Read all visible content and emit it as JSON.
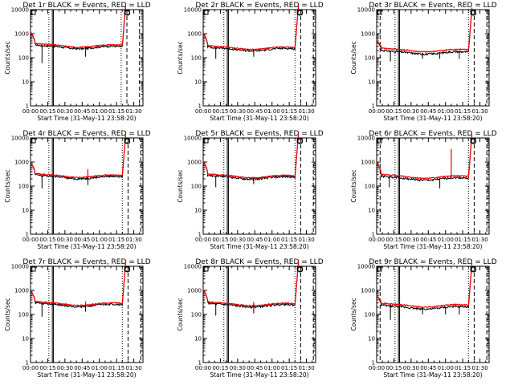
{
  "colors": {
    "background": "#ffffff",
    "events": "#000000",
    "lld": "#ff0000",
    "axis": "#000000"
  },
  "chart_data": [
    {
      "type": "line",
      "title": "Det 1r BLACK = Events, RED = LLD",
      "xlabel": "Start Time (31-May-11 23:58:20)",
      "ylabel": "Counts/sec",
      "yscale": "log",
      "ylim": [
        1,
        10000
      ],
      "xlim_min": [
        0,
        98
      ],
      "xticks": [
        "00:00",
        "00:15",
        "00:30",
        "00:45",
        "01:00",
        "01:15",
        "01:30"
      ],
      "yticks": [
        "1",
        "10",
        "100",
        "1000",
        "10000"
      ],
      "legend": "title-text",
      "grid": false,
      "events_base": 270,
      "lld_base": 310,
      "peak": 1200,
      "events_series": {
        "name": "Events",
        "color": "#000000"
      },
      "lld_series": {
        "name": "LLD",
        "color": "#ff0000"
      },
      "dips": [
        [
          10,
          60
        ],
        [
          48,
          110
        ]
      ],
      "spikes": [],
      "vlines_dotted": [
        16,
        79
      ],
      "vlines_solid": [
        19,
        20
      ],
      "vlines_dashed": [
        84,
        95
      ]
    },
    {
      "type": "line",
      "title": "Det 2r BLACK = Events, RED = LLD",
      "xlabel": "Start Time (31-May-11 23:58:20)",
      "ylabel": "Counts/sec",
      "yscale": "log",
      "ylim": [
        1,
        10000
      ],
      "xlim_min": [
        0,
        98
      ],
      "xticks": [
        "00:00",
        "00:15",
        "00:30",
        "00:45",
        "01:00",
        "01:15",
        "01:30"
      ],
      "yticks": [
        "1",
        "10",
        "100",
        "1000",
        "10000"
      ],
      "legend": "title-text",
      "grid": false,
      "events_base": 220,
      "lld_base": 250,
      "peak": 1100,
      "events_series": {
        "name": "Events",
        "color": "#000000"
      },
      "lld_series": {
        "name": "LLD",
        "color": "#ff0000"
      },
      "dips": [
        [
          11,
          90
        ],
        [
          44,
          110
        ]
      ],
      "spikes": [],
      "vlines_dotted": [
        18,
        80
      ],
      "vlines_solid": [
        21,
        22
      ],
      "vlines_dashed": [
        85,
        96
      ]
    },
    {
      "type": "line",
      "title": "Det 3r BLACK = Events, RED = LLD",
      "xlabel": "Start Time (31-May-11 23:58:20)",
      "ylabel": "Counts/sec",
      "yscale": "log",
      "ylim": [
        1,
        10000
      ],
      "xlim_min": [
        0,
        98
      ],
      "xticks": [
        "00:00",
        "00:15",
        "00:30",
        "00:45",
        "01:00",
        "01:15",
        "01:30"
      ],
      "yticks": [
        "1",
        "10",
        "100",
        "1000",
        "10000"
      ],
      "legend": "title-text",
      "grid": false,
      "events_base": 160,
      "lld_base": 200,
      "peak": 500,
      "events_series": {
        "name": "Events",
        "color": "#000000"
      },
      "lld_series": {
        "name": "LLD",
        "color": "#ff0000"
      },
      "dips": [
        [
          12,
          70
        ],
        [
          40,
          90
        ],
        [
          55,
          90
        ],
        [
          72,
          90
        ]
      ],
      "spikes": [],
      "vlines_dotted": [
        16,
        80
      ],
      "vlines_solid": [
        19,
        20
      ],
      "vlines_dashed": [
        3,
        85,
        96
      ]
    },
    {
      "type": "line",
      "title": "Det 4r BLACK = Events, RED = LLD",
      "xlabel": "Start Time (31-May-11 23:58:20)",
      "ylabel": "Counts/sec",
      "yscale": "log",
      "ylim": [
        1,
        10000
      ],
      "xlim_min": [
        0,
        98
      ],
      "xticks": [
        "00:00",
        "00:15",
        "00:30",
        "00:45",
        "01:00",
        "01:15",
        "01:30"
      ],
      "yticks": [
        "1",
        "10",
        "100",
        "1000",
        "10000"
      ],
      "legend": "title-text",
      "grid": false,
      "events_base": 230,
      "lld_base": 260,
      "peak": 1000,
      "events_series": {
        "name": "Events",
        "color": "#000000"
      },
      "lld_series": {
        "name": "LLD",
        "color": "#ff0000"
      },
      "dips": [
        [
          10,
          80
        ],
        [
          50,
          110
        ]
      ],
      "spikes": [
        [
          50,
          500
        ]
      ],
      "vlines_dotted": [
        16,
        80
      ],
      "vlines_solid": [
        19,
        20
      ],
      "vlines_dashed": [
        85,
        96
      ]
    },
    {
      "type": "line",
      "title": "Det 5r BLACK = Events, RED = LLD",
      "xlabel": "Start Time (31-May-11 23:58:20)",
      "ylabel": "Counts/sec",
      "yscale": "log",
      "ylim": [
        1,
        10000
      ],
      "xlim_min": [
        0,
        98
      ],
      "xticks": [
        "00:00",
        "00:15",
        "00:30",
        "00:45",
        "01:00",
        "01:15",
        "01:30"
      ],
      "yticks": [
        "1",
        "10",
        "100",
        "1000",
        "10000"
      ],
      "legend": "title-text",
      "grid": false,
      "events_base": 220,
      "lld_base": 250,
      "peak": 1100,
      "events_series": {
        "name": "Events",
        "color": "#000000"
      },
      "lld_series": {
        "name": "LLD",
        "color": "#ff0000"
      },
      "dips": [
        [
          11,
          90
        ],
        [
          44,
          120
        ]
      ],
      "spikes": [],
      "vlines_dotted": [
        18,
        80
      ],
      "vlines_solid": [
        21,
        22
      ],
      "vlines_dashed": [
        85,
        96
      ]
    },
    {
      "type": "line",
      "title": "Det 6r BLACK = Events, RED = LLD",
      "xlabel": "Start Time (31-May-11 23:58:20)",
      "ylabel": "Counts/sec",
      "yscale": "log",
      "ylim": [
        1,
        10000
      ],
      "xlim_min": [
        0,
        98
      ],
      "xticks": [
        "00:00",
        "00:15",
        "00:30",
        "00:45",
        "01:00",
        "01:15",
        "01:30"
      ],
      "yticks": [
        "1",
        "10",
        "100",
        "1000",
        "10000"
      ],
      "legend": "title-text",
      "grid": false,
      "events_base": 200,
      "lld_base": 240,
      "peak": 1000,
      "events_series": {
        "name": "Events",
        "color": "#000000"
      },
      "lld_series": {
        "name": "LLD",
        "color": "#ff0000"
      },
      "dips": [
        [
          11,
          90
        ],
        [
          55,
          80
        ]
      ],
      "spikes": [
        [
          65,
          3500
        ]
      ],
      "vlines_dotted": [
        16,
        80
      ],
      "vlines_solid": [
        19,
        20
      ],
      "vlines_dashed": [
        3,
        85,
        96
      ]
    },
    {
      "type": "line",
      "title": "Det 7r BLACK = Events, RED = LLD",
      "xlabel": "Start Time (31-May-11 23:58:20)",
      "ylabel": "Counts/sec",
      "yscale": "log",
      "ylim": [
        1,
        10000
      ],
      "xlim_min": [
        0,
        98
      ],
      "xticks": [
        "00:00",
        "00:15",
        "00:30",
        "00:45",
        "01:00",
        "01:15",
        "01:30"
      ],
      "yticks": [
        "1",
        "10",
        "100",
        "1000",
        "10000"
      ],
      "legend": "title-text",
      "grid": false,
      "events_base": 240,
      "lld_base": 270,
      "peak": 1000,
      "events_series": {
        "name": "Events",
        "color": "#000000"
      },
      "lld_series": {
        "name": "LLD",
        "color": "#ff0000"
      },
      "dips": [
        [
          10,
          80
        ],
        [
          48,
          130
        ]
      ],
      "spikes": [
        [
          48,
          350
        ]
      ],
      "vlines_dotted": [
        16,
        80
      ],
      "vlines_solid": [
        19,
        20
      ],
      "vlines_dashed": [
        85,
        96
      ]
    },
    {
      "type": "line",
      "title": "Det 8r BLACK = Events, RED = LLD",
      "xlabel": "Start Time (31-May-11 23:58:20)",
      "ylabel": "Counts/sec",
      "yscale": "log",
      "ylim": [
        1,
        10000
      ],
      "xlim_min": [
        0,
        98
      ],
      "xticks": [
        "00:00",
        "00:15",
        "00:30",
        "00:45",
        "01:00",
        "01:15",
        "01:30"
      ],
      "yticks": [
        "1",
        "10",
        "100",
        "1000",
        "10000"
      ],
      "legend": "title-text",
      "grid": false,
      "events_base": 230,
      "lld_base": 260,
      "peak": 1100,
      "events_series": {
        "name": "Events",
        "color": "#000000"
      },
      "lld_series": {
        "name": "LLD",
        "color": "#ff0000"
      },
      "dips": [
        [
          11,
          90
        ],
        [
          44,
          110
        ]
      ],
      "spikes": [
        [
          44,
          330
        ]
      ],
      "vlines_dotted": [
        18,
        80
      ],
      "vlines_solid": [
        21,
        22
      ],
      "vlines_dashed": [
        85,
        96
      ]
    },
    {
      "type": "line",
      "title": "Det 9r BLACK = Events, RED = LLD",
      "xlabel": "Start Time (31-May-11 23:58:20)",
      "ylabel": "Counts/sec",
      "yscale": "log",
      "ylim": [
        1,
        10000
      ],
      "xlim_min": [
        0,
        98
      ],
      "xticks": [
        "00:00",
        "00:15",
        "00:30",
        "00:45",
        "01:00",
        "01:15",
        "01:30"
      ],
      "yticks": [
        "1",
        "10",
        "100",
        "1000",
        "10000"
      ],
      "legend": "title-text",
      "grid": false,
      "events_base": 190,
      "lld_base": 230,
      "peak": 600,
      "events_series": {
        "name": "Events",
        "color": "#000000"
      },
      "lld_series": {
        "name": "LLD",
        "color": "#ff0000"
      },
      "dips": [
        [
          12,
          60
        ],
        [
          40,
          100
        ],
        [
          60,
          100
        ],
        [
          72,
          100
        ]
      ],
      "spikes": [],
      "vlines_dotted": [
        16,
        80
      ],
      "vlines_solid": [
        19,
        20
      ],
      "vlines_dashed": [
        3,
        85,
        96
      ]
    }
  ]
}
